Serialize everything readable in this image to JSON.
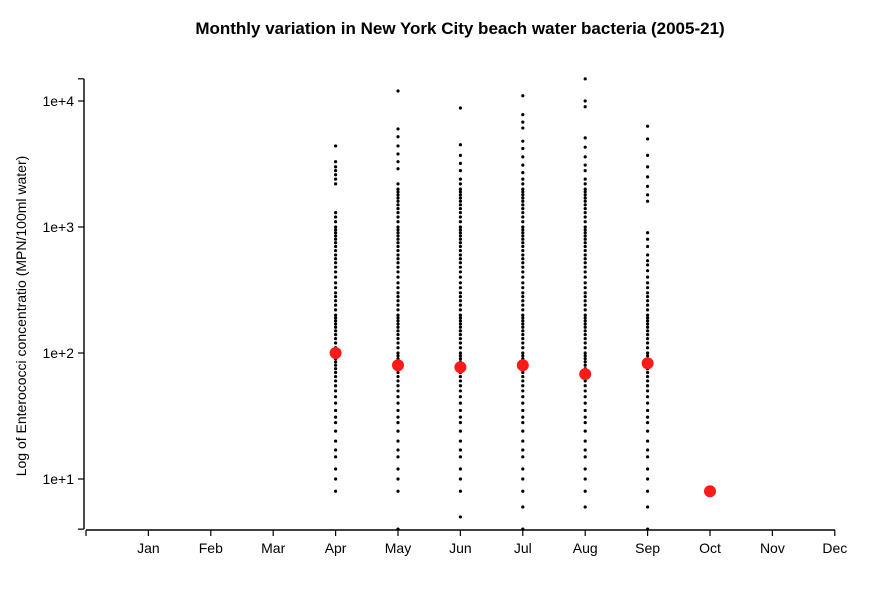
{
  "chart_data": {
    "type": "scatter",
    "title": "Monthly variation in New York City beach water bacteria (2005-21)",
    "xlabel": "",
    "ylabel": "Log of Enterococci concentratio (MPN/100ml water)",
    "x_scale": "categorical",
    "y_scale": "log10",
    "ylim": [
      4,
      15000
    ],
    "grid": false,
    "categories": [
      "Jan",
      "Feb",
      "Mar",
      "Apr",
      "May",
      "Jun",
      "Jul",
      "Aug",
      "Sep",
      "Oct",
      "Nov",
      "Dec"
    ],
    "y_ticks": [
      {
        "value": 10,
        "label": "1e+1"
      },
      {
        "value": 100,
        "label": "1e+2"
      },
      {
        "value": 1000,
        "label": "1e+3"
      },
      {
        "value": 10000,
        "label": "1e+4"
      }
    ],
    "series": [
      {
        "color": "#000000",
        "marker": "small-dot",
        "points": {
          "Apr": [
            8,
            10,
            12,
            15,
            17,
            20,
            24,
            28,
            31,
            35,
            40,
            45,
            50,
            55,
            60,
            65,
            70,
            75,
            80,
            85,
            90,
            95,
            100,
            110,
            120,
            130,
            140,
            150,
            160,
            170,
            180,
            190,
            200,
            220,
            240,
            260,
            280,
            300,
            330,
            360,
            400,
            440,
            480,
            520,
            560,
            600,
            650,
            700,
            750,
            800,
            850,
            900,
            950,
            1000,
            1100,
            1200,
            1300,
            2200,
            2400,
            2600,
            2800,
            3000,
            3300,
            4400
          ],
          "May": [
            4,
            8,
            10,
            12,
            15,
            17,
            20,
            24,
            28,
            31,
            35,
            40,
            45,
            50,
            55,
            60,
            65,
            70,
            75,
            80,
            85,
            90,
            95,
            100,
            110,
            120,
            130,
            140,
            150,
            160,
            170,
            180,
            190,
            200,
            220,
            240,
            260,
            280,
            300,
            330,
            360,
            400,
            440,
            480,
            520,
            560,
            600,
            650,
            700,
            750,
            800,
            850,
            900,
            950,
            1000,
            1100,
            1200,
            1300,
            1400,
            1500,
            1600,
            1700,
            1800,
            1900,
            2000,
            2200,
            2900,
            3300,
            3800,
            4400,
            5200,
            6000,
            12000
          ],
          "Jun": [
            5,
            8,
            10,
            12,
            15,
            17,
            20,
            24,
            28,
            31,
            35,
            40,
            45,
            50,
            55,
            60,
            65,
            70,
            75,
            80,
            85,
            90,
            95,
            100,
            110,
            120,
            130,
            140,
            150,
            160,
            170,
            180,
            190,
            200,
            220,
            240,
            260,
            280,
            300,
            330,
            360,
            400,
            440,
            480,
            520,
            560,
            600,
            650,
            700,
            750,
            800,
            850,
            900,
            950,
            1000,
            1100,
            1200,
            1300,
            1400,
            1500,
            1600,
            1700,
            1800,
            1900,
            2000,
            2200,
            2400,
            2800,
            3200,
            3700,
            4500,
            8800
          ],
          "Jul": [
            4,
            6,
            8,
            10,
            12,
            15,
            17,
            20,
            24,
            28,
            31,
            35,
            40,
            45,
            50,
            55,
            60,
            65,
            70,
            75,
            80,
            85,
            90,
            95,
            100,
            110,
            120,
            130,
            140,
            150,
            160,
            170,
            180,
            190,
            200,
            220,
            240,
            260,
            280,
            300,
            330,
            360,
            400,
            440,
            480,
            520,
            560,
            600,
            650,
            700,
            750,
            800,
            850,
            900,
            950,
            1000,
            1100,
            1200,
            1300,
            1400,
            1500,
            1600,
            1700,
            1800,
            1900,
            2000,
            2200,
            2400,
            2700,
            3100,
            3600,
            4200,
            4800,
            6100,
            6800,
            7800,
            11000
          ],
          "Aug": [
            6,
            8,
            10,
            12,
            15,
            17,
            20,
            24,
            28,
            31,
            35,
            40,
            45,
            50,
            55,
            60,
            65,
            70,
            75,
            80,
            85,
            90,
            95,
            100,
            110,
            120,
            130,
            140,
            150,
            160,
            170,
            180,
            190,
            200,
            220,
            240,
            260,
            280,
            300,
            330,
            360,
            400,
            440,
            480,
            520,
            560,
            600,
            650,
            700,
            750,
            800,
            850,
            900,
            950,
            1000,
            1100,
            1200,
            1300,
            1400,
            1500,
            1600,
            1700,
            1800,
            1900,
            2000,
            2200,
            2400,
            2800,
            3100,
            3600,
            4300,
            5100,
            9000,
            10000,
            15000
          ],
          "Sep": [
            4,
            6,
            8,
            10,
            12,
            15,
            17,
            20,
            24,
            28,
            31,
            35,
            40,
            45,
            50,
            55,
            60,
            65,
            70,
            75,
            80,
            85,
            90,
            95,
            100,
            110,
            120,
            130,
            140,
            150,
            160,
            170,
            180,
            190,
            200,
            220,
            240,
            260,
            280,
            300,
            330,
            360,
            400,
            450,
            500,
            540,
            600,
            700,
            800,
            900,
            1600,
            1800,
            2100,
            2500,
            3000,
            3700,
            5000,
            6300
          ]
        }
      },
      {
        "color": "#ff1a1a",
        "marker": "large-dot",
        "points": {
          "Apr": [
            100
          ],
          "May": [
            80
          ],
          "Jun": [
            77
          ],
          "Jul": [
            80
          ],
          "Aug": [
            68
          ],
          "Sep": [
            83
          ],
          "Oct": [
            8
          ]
        }
      }
    ]
  }
}
